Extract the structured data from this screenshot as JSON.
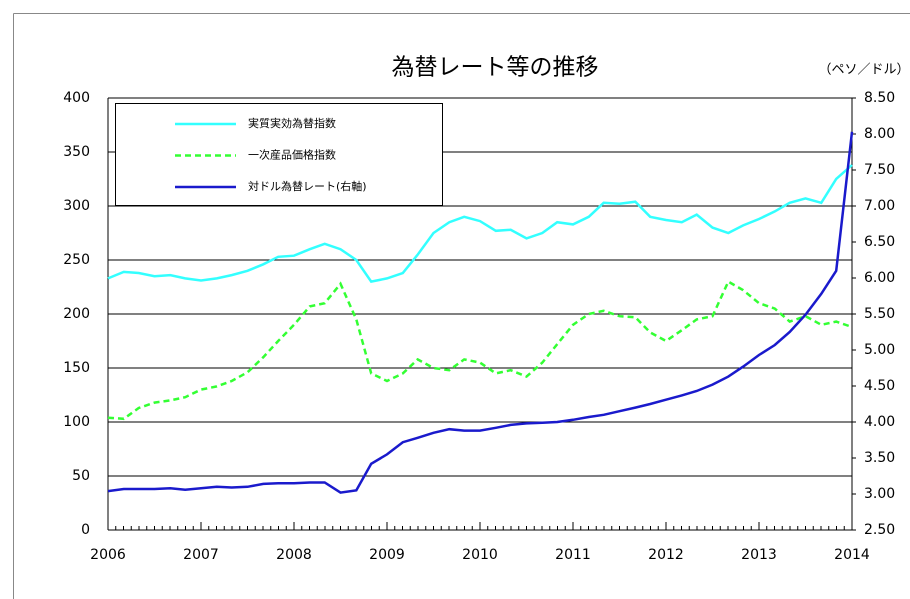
{
  "chart_data": {
    "type": "line",
    "title": "為替レート等の推移",
    "y2_label": "（ペソ／ドル）",
    "x": [
      2006,
      2006.17,
      2006.33,
      2006.5,
      2006.67,
      2006.83,
      2007,
      2007.17,
      2007.33,
      2007.5,
      2007.67,
      2007.83,
      2008,
      2008.17,
      2008.33,
      2008.5,
      2008.67,
      2008.83,
      2009,
      2009.17,
      2009.33,
      2009.5,
      2009.67,
      2009.83,
      2010,
      2010.17,
      2010.33,
      2010.5,
      2010.67,
      2010.83,
      2011,
      2011.17,
      2011.33,
      2011.5,
      2011.67,
      2011.83,
      2012,
      2012.17,
      2012.33,
      2012.5,
      2012.67,
      2012.83,
      2013,
      2013.17,
      2013.33,
      2013.5,
      2013.67,
      2013.83,
      2014
    ],
    "series": [
      {
        "name": "実質実効為替指数",
        "color": "#33ffff",
        "dash": false,
        "values": [
          233,
          239,
          238,
          235,
          236,
          233,
          231,
          233,
          236,
          240,
          246,
          253,
          254,
          260,
          265,
          260,
          250,
          230,
          233,
          238,
          255,
          275,
          285,
          290,
          286,
          277,
          278,
          270,
          275,
          285,
          283,
          290,
          303,
          302,
          304,
          290,
          287,
          285,
          292,
          280,
          275,
          282,
          288,
          295,
          303,
          307,
          303,
          325,
          338
        ]
      },
      {
        "name": "一次産品価格指数",
        "color": "#33ff33",
        "dash": true,
        "values": [
          104,
          103,
          113,
          118,
          120,
          123,
          130,
          133,
          138,
          146,
          160,
          175,
          190,
          207,
          210,
          228,
          195,
          145,
          138,
          145,
          158,
          150,
          148,
          158,
          155,
          145,
          148,
          142,
          155,
          172,
          190,
          200,
          203,
          198,
          197,
          183,
          175,
          185,
          195,
          198,
          230,
          222,
          210,
          205,
          193,
          198,
          190,
          193,
          188
        ]
      },
      {
        "name": "対ドル為替レート(右軸)",
        "color": "#1a1acc",
        "dash": false,
        "axis": "y2",
        "values": [
          3.04,
          3.07,
          3.07,
          3.07,
          3.08,
          3.06,
          3.08,
          3.1,
          3.09,
          3.1,
          3.14,
          3.15,
          3.15,
          3.16,
          3.16,
          3.02,
          3.05,
          3.42,
          3.55,
          3.72,
          3.78,
          3.85,
          3.9,
          3.88,
          3.88,
          3.92,
          3.96,
          3.98,
          3.99,
          4.0,
          4.03,
          4.07,
          4.1,
          4.15,
          4.2,
          4.25,
          4.31,
          4.37,
          4.43,
          4.52,
          4.63,
          4.77,
          4.93,
          5.07,
          5.25,
          5.49,
          5.78,
          6.1,
          8.03
        ]
      }
    ],
    "xlim": [
      2006,
      2014
    ],
    "xticks": [
      2006,
      2007,
      2008,
      2009,
      2010,
      2011,
      2012,
      2013,
      2014
    ],
    "ylim": [
      0,
      400
    ],
    "yticks": [
      0,
      50,
      100,
      150,
      200,
      250,
      300,
      350,
      400
    ],
    "y2lim": [
      2.5,
      8.5
    ],
    "y2ticks": [
      {
        "value": 2.5,
        "label": "2.50"
      },
      {
        "value": 3,
        "label": "3.00"
      },
      {
        "value": 3.5,
        "label": "3.50"
      },
      {
        "value": 4,
        "label": "4.00"
      },
      {
        "value": 4.5,
        "label": "4.50"
      },
      {
        "value": 5,
        "label": "5.00"
      },
      {
        "value": 5.5,
        "label": "5.50"
      },
      {
        "value": 6,
        "label": "6.00"
      },
      {
        "value": 6.5,
        "label": "6.50"
      },
      {
        "value": 7,
        "label": "7.00"
      },
      {
        "value": 7.5,
        "label": "7.50"
      },
      {
        "value": 8,
        "label": "8.00"
      },
      {
        "value": 8.5,
        "label": "8.50"
      }
    ],
    "grid": true,
    "legend": "upper left"
  }
}
